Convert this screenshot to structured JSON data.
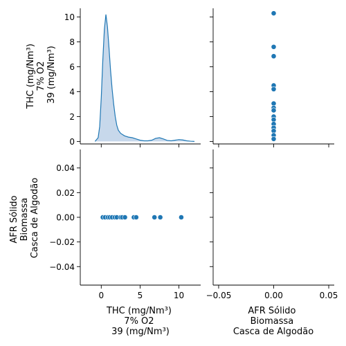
{
  "chart_data": {
    "type": "pairplot",
    "variables": [
      [
        "THC (mg/Nm³)",
        "7% O2",
        "39 (mg/Nm³)"
      ],
      [
        "AFR Sólido",
        "Biomassa",
        "Casca de Algodão"
      ]
    ],
    "color": "#1f77b4",
    "kde_fill": "#c4d6ea",
    "panels": {
      "thc_kde": {
        "type": "area",
        "x": [
          -0.8,
          -0.4,
          -0.2,
          0,
          0.2,
          0.4,
          0.5,
          0.6,
          0.8,
          1,
          1.2,
          1.4,
          1.6,
          1.8,
          2,
          2.2,
          2.5,
          3,
          3.5,
          4,
          4.5,
          5,
          5.5,
          6,
          6.5,
          7,
          7.5,
          8,
          8.5,
          9,
          9.5,
          10,
          10.5,
          11,
          11.5,
          12
        ],
        "y": [
          0,
          0.3,
          1.2,
          3.5,
          6.5,
          9.0,
          9.6,
          10.2,
          9.2,
          7.5,
          5.7,
          4.2,
          3.0,
          2.0,
          1.3,
          0.9,
          0.65,
          0.45,
          0.35,
          0.3,
          0.2,
          0.1,
          0.05,
          0.05,
          0.1,
          0.25,
          0.3,
          0.2,
          0.08,
          0.05,
          0.1,
          0.15,
          0.12,
          0.05,
          0.02,
          0
        ],
        "xlim": [
          -2.7,
          12.8
        ],
        "ylim": [
          -0.2,
          10.7
        ],
        "yticks": [
          "0",
          "2",
          "4",
          "6",
          "8",
          "10"
        ],
        "ytick_values": [
          0,
          2,
          4,
          6,
          8,
          10
        ]
      },
      "thc_vs_afr": {
        "type": "scatter",
        "x": [
          0,
          0,
          0,
          0,
          0,
          0,
          0,
          0,
          0,
          0,
          0,
          0,
          0,
          0,
          0
        ],
        "y": [
          10.3,
          7.6,
          6.85,
          4.5,
          4.2,
          3.05,
          2.7,
          2.5,
          2.0,
          1.75,
          1.4,
          1.1,
          0.85,
          0.5,
          0.2
        ],
        "xlim": [
          -0.055,
          0.055
        ],
        "ylim": [
          -0.2,
          10.7
        ]
      },
      "afr_vs_thc": {
        "type": "scatter",
        "x": [
          0.2,
          0.5,
          0.85,
          1.1,
          1.4,
          1.75,
          2.0,
          2.5,
          2.7,
          3.05,
          4.2,
          4.5,
          6.85,
          7.6,
          10.3
        ],
        "y": [
          0,
          0,
          0,
          0,
          0,
          0,
          0,
          0,
          0,
          0,
          0,
          0,
          0,
          0,
          0
        ],
        "xlim": [
          -2.7,
          12.8
        ],
        "ylim": [
          -0.055,
          0.055
        ],
        "yticks": [
          "0.04",
          "0.02",
          "0.00",
          "−0.02",
          "−0.04"
        ],
        "ytick_values": [
          0.04,
          0.02,
          0,
          -0.02,
          -0.04
        ]
      },
      "afr_diag": {
        "type": "empty"
      }
    },
    "xaxis_thc": {
      "ticks": [
        "0",
        "5",
        "10"
      ],
      "values": [
        0,
        5,
        10
      ]
    },
    "xaxis_afr": {
      "ticks": [
        "−0.05",
        "0.00",
        "0.05"
      ],
      "values": [
        -0.05,
        0,
        0.05
      ]
    }
  }
}
